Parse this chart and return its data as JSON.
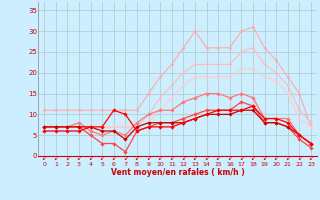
{
  "xlabel": "Vent moyen/en rafales ( km/h )",
  "xlim": [
    -0.5,
    23.5
  ],
  "ylim": [
    0,
    37
  ],
  "yticks": [
    0,
    5,
    10,
    15,
    20,
    25,
    30,
    35
  ],
  "xticks": [
    0,
    1,
    2,
    3,
    4,
    5,
    6,
    7,
    8,
    9,
    10,
    11,
    12,
    13,
    14,
    15,
    16,
    17,
    18,
    19,
    20,
    21,
    22,
    23
  ],
  "bg_color": "#cceeff",
  "grid_color": "#b0c8c8",
  "series": [
    {
      "color": "#ffaaaa",
      "lw": 0.8,
      "marker": "D",
      "ms": 1.5,
      "y": [
        11,
        11,
        11,
        11,
        11,
        11,
        11,
        11,
        11,
        15,
        19,
        22,
        26,
        30,
        26,
        26,
        26,
        30,
        31,
        26,
        23,
        19,
        15,
        7
      ]
    },
    {
      "color": "#ffbbbb",
      "lw": 0.8,
      "marker": "D",
      "ms": 1.5,
      "y": [
        7,
        7,
        7,
        7,
        7,
        7,
        7,
        7,
        7,
        10,
        14,
        17,
        20,
        22,
        22,
        22,
        22,
        25,
        26,
        22,
        20,
        17,
        11,
        8
      ]
    },
    {
      "color": "#ffcccc",
      "lw": 0.8,
      "marker": "D",
      "ms": 1.5,
      "y": [
        7,
        7,
        7,
        7,
        7,
        7,
        7,
        7,
        7,
        8,
        11,
        14,
        17,
        19,
        19,
        19,
        19,
        21,
        21,
        19,
        18,
        15,
        9,
        7
      ]
    },
    {
      "color": "#ff7777",
      "lw": 0.9,
      "marker": "D",
      "ms": 1.8,
      "y": [
        7,
        7,
        7,
        8,
        6,
        5,
        6,
        5,
        8,
        10,
        11,
        11,
        13,
        14,
        15,
        15,
        14,
        15,
        14,
        9,
        9,
        9,
        5,
        3
      ]
    },
    {
      "color": "#ff4444",
      "lw": 0.9,
      "marker": "D",
      "ms": 1.8,
      "y": [
        7,
        7,
        7,
        7,
        5,
        3,
        3,
        1,
        6,
        7,
        8,
        8,
        9,
        10,
        11,
        11,
        11,
        13,
        12,
        8,
        8,
        7,
        4,
        2
      ]
    },
    {
      "color": "#cc0000",
      "lw": 0.9,
      "marker": "D",
      "ms": 1.8,
      "y": [
        7,
        7,
        7,
        7,
        7,
        6,
        6,
        4,
        7,
        8,
        8,
        8,
        8,
        9,
        10,
        10,
        10,
        11,
        11,
        8,
        8,
        7,
        5,
        3
      ]
    },
    {
      "color": "#ff0000",
      "lw": 0.9,
      "marker": "D",
      "ms": 1.8,
      "y": [
        6,
        6,
        6,
        6,
        7,
        7,
        11,
        10,
        6,
        7,
        7,
        7,
        8,
        9,
        10,
        11,
        11,
        11,
        12,
        9,
        9,
        8,
        5,
        3
      ]
    }
  ],
  "tick_color": "#cc0000",
  "label_color": "#cc0000"
}
